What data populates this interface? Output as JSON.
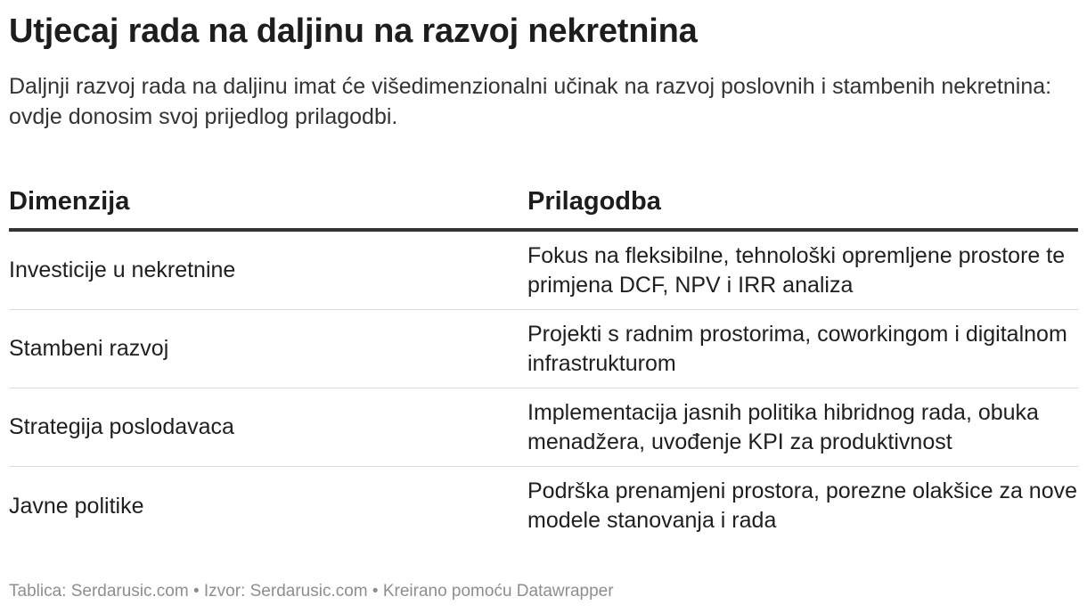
{
  "title": "Utjecaj rada na daljinu na razvoj nekretnina",
  "subtitle": "Daljnji razvoj rada na daljinu imat će višedimenzionalni učinak na razvoj poslovnih i stambenih nekretnina: ovdje donosim svoj prijedlog prilagodbi.",
  "table": {
    "headers": [
      "Dimenzija",
      "Prilagodba"
    ],
    "rows": [
      {
        "dimension": "Investicije u nekretnine",
        "adjustment": "Fokus na fleksibilne, tehnološki opremljene prostore te primjena DCF, NPV i IRR analiza"
      },
      {
        "dimension": "Stambeni razvoj",
        "adjustment": "Projekti s radnim prostorima, coworkingom i digitalnom infrastrukturom"
      },
      {
        "dimension": "Strategija poslodavaca",
        "adjustment": "Implementacija jasnih politika hibridnog rada, obuka menadžera, uvođenje KPI za produktivnost"
      },
      {
        "dimension": "Javne politike",
        "adjustment": "Podrška prenamjeni prostora, porezne olakšice za nove modele stanovanja i rada"
      }
    ]
  },
  "footer": "Tablica: Serdarusic.com • Izvor: Serdarusic.com • Kreirano pomoću Datawrapper"
}
